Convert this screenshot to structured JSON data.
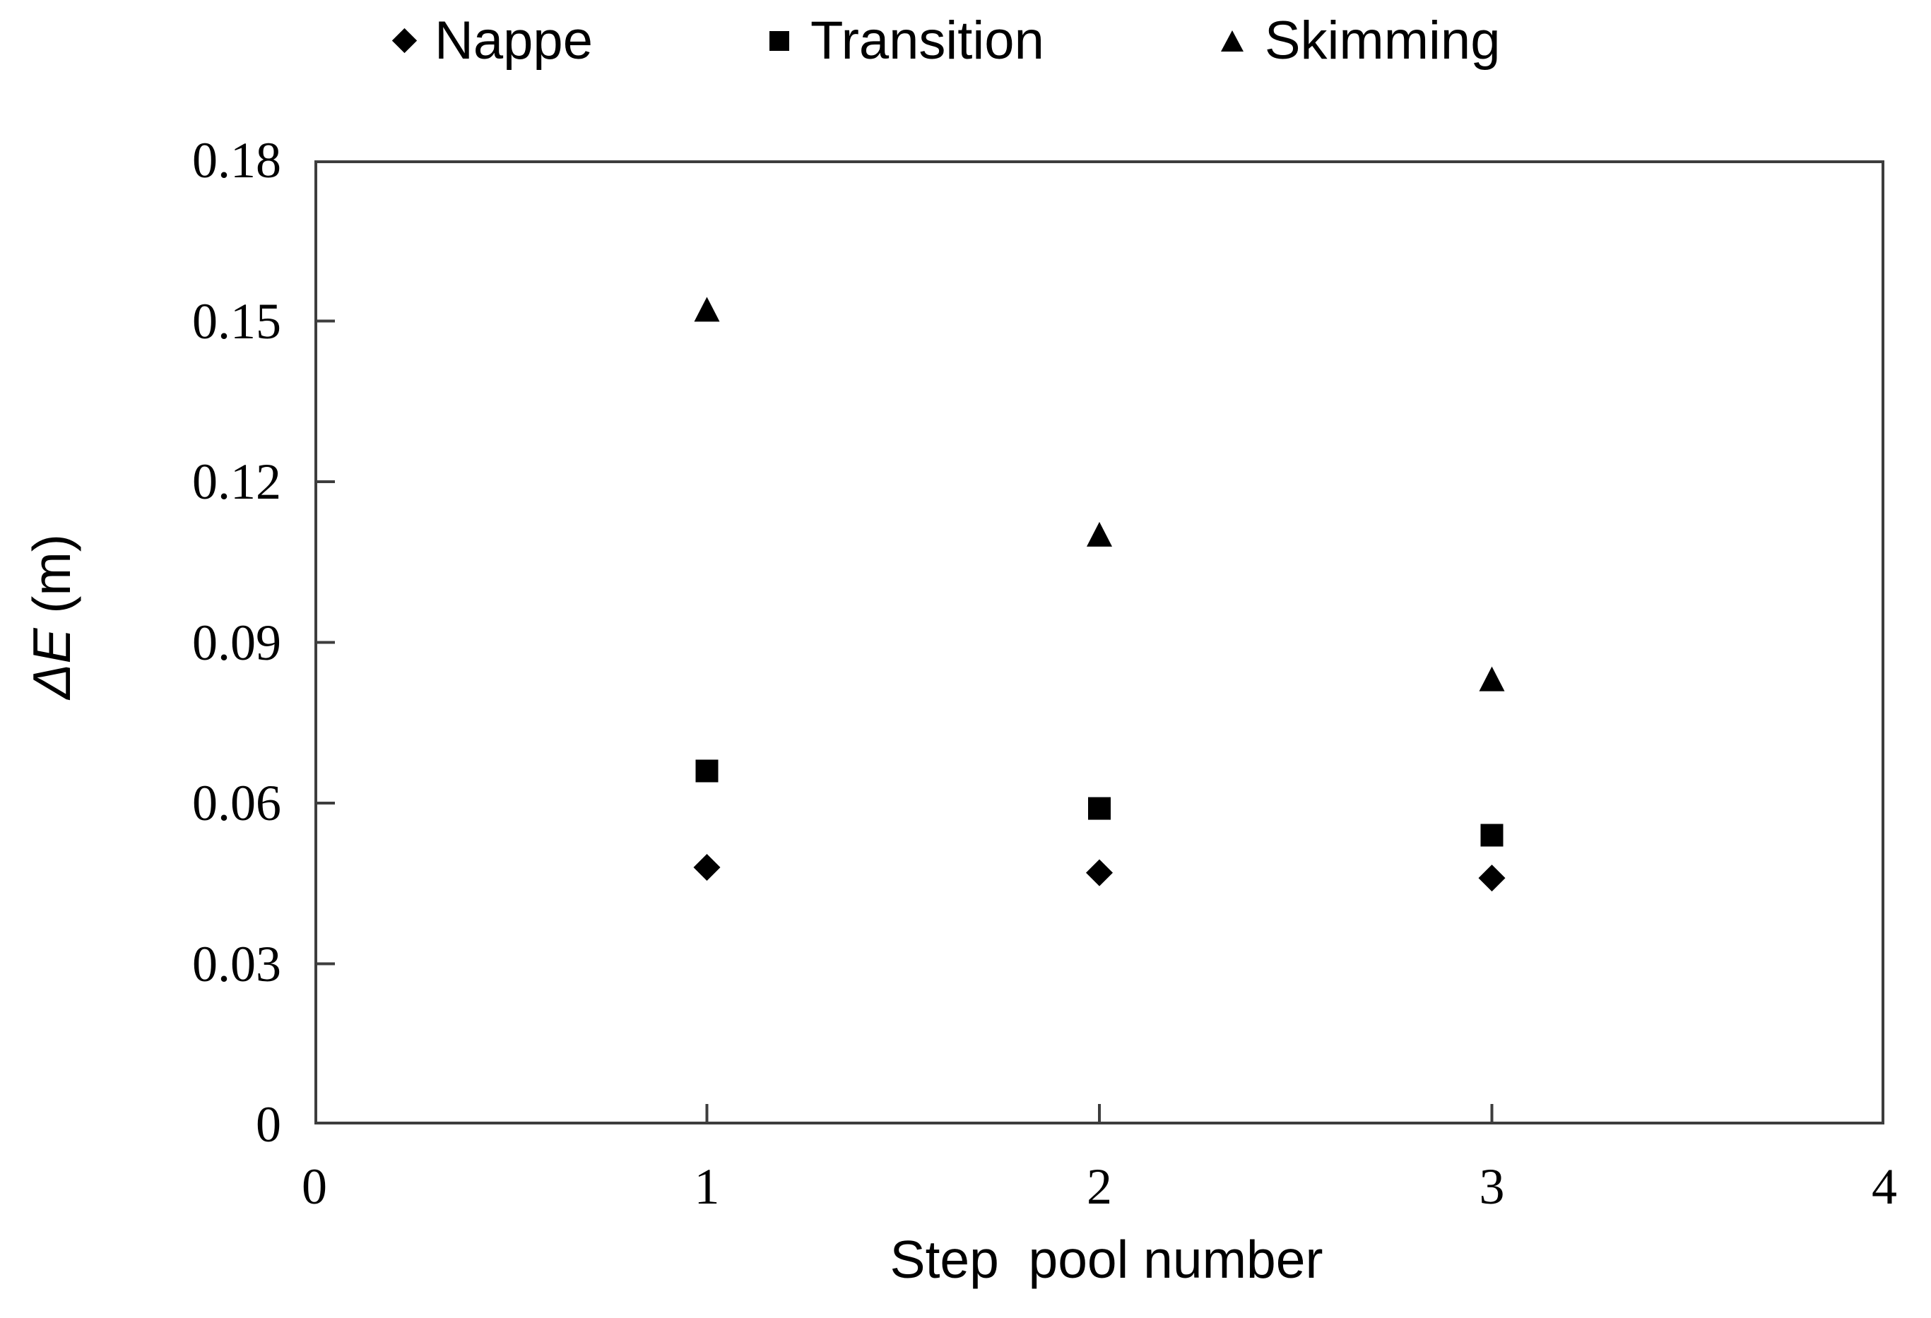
{
  "chart_data": {
    "type": "scatter",
    "title": "",
    "xlabel": "Step  pool number",
    "ylabel": "ΔE (m)",
    "ylabel_main": "ΔE",
    "ylabel_unit": " (m)",
    "xlim": [
      0,
      4
    ],
    "ylim": [
      0,
      0.18
    ],
    "x_ticks": [
      0,
      1,
      2,
      3,
      4
    ],
    "x_tick_labels": [
      "0",
      "1",
      "2",
      "3",
      "4"
    ],
    "y_ticks": [
      0,
      0.03,
      0.06,
      0.09,
      0.12,
      0.15,
      0.18
    ],
    "y_tick_labels": [
      "0",
      "0.03",
      "0.06",
      "0.09",
      "0.12",
      "0.15",
      "0.18"
    ],
    "grid": false,
    "legend_position": "top-center",
    "series": [
      {
        "name": "Nappe",
        "marker": "diamond",
        "x": [
          1,
          2,
          3
        ],
        "y": [
          0.048,
          0.047,
          0.046
        ]
      },
      {
        "name": "Transition",
        "marker": "square",
        "x": [
          1,
          2,
          3
        ],
        "y": [
          0.066,
          0.059,
          0.054
        ]
      },
      {
        "name": "Skimming",
        "marker": "triangle",
        "x": [
          1,
          2,
          3
        ],
        "y": [
          0.152,
          0.11,
          0.083
        ]
      }
    ],
    "colors": {
      "marker": "#000000",
      "axis_line": "#3d3d3d",
      "text": "#000000",
      "background": "#ffffff"
    }
  }
}
